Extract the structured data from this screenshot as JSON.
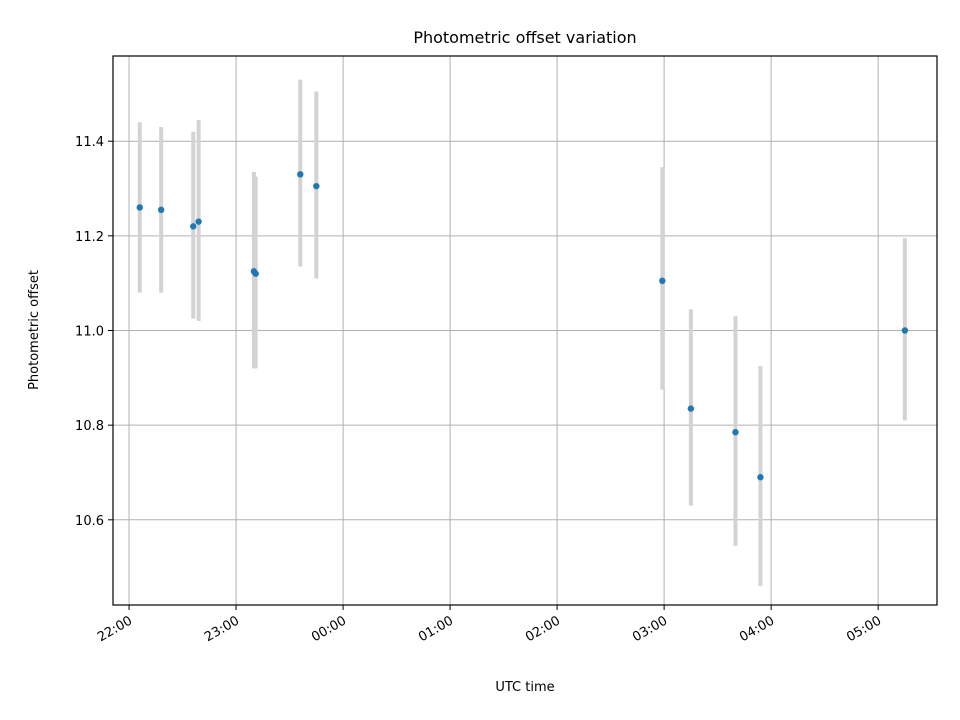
{
  "chart_data": {
    "type": "scatter",
    "title": "Photometric offset variation",
    "xlabel": "UTC time",
    "ylabel": "Photometric offset",
    "x_tick_labels": [
      "22:00",
      "23:00",
      "00:00",
      "01:00",
      "02:00",
      "03:00",
      "04:00",
      "05:00"
    ],
    "y_ticks": [
      10.6,
      10.8,
      11.0,
      11.2,
      11.4
    ],
    "y_tick_labels": [
      "10.6",
      "10.8",
      "11.0",
      "11.2",
      "11.4"
    ],
    "xlim": [
      "21:51",
      "05:33"
    ],
    "ylim": [
      10.42,
      11.58
    ],
    "grid": true,
    "marker_color": "#1f77b4",
    "errorbar_color": "#d3d3d3",
    "points": [
      {
        "x": "22:06",
        "y": 11.26,
        "low": 11.08,
        "high": 11.44
      },
      {
        "x": "22:18",
        "y": 11.255,
        "low": 11.08,
        "high": 11.43
      },
      {
        "x": "22:36",
        "y": 11.22,
        "low": 11.025,
        "high": 11.42
      },
      {
        "x": "22:39",
        "y": 11.23,
        "low": 11.02,
        "high": 11.445
      },
      {
        "x": "23:10",
        "y": 11.125,
        "low": 10.92,
        "high": 11.335
      },
      {
        "x": "23:11",
        "y": 11.12,
        "low": 10.92,
        "high": 11.325
      },
      {
        "x": "23:36",
        "y": 11.33,
        "low": 11.135,
        "high": 11.53
      },
      {
        "x": "23:45",
        "y": 11.305,
        "low": 11.11,
        "high": 11.505
      },
      {
        "x": "02:59",
        "y": 11.105,
        "low": 10.875,
        "high": 11.345
      },
      {
        "x": "03:15",
        "y": 10.835,
        "low": 10.63,
        "high": 11.045
      },
      {
        "x": "03:40",
        "y": 10.785,
        "low": 10.545,
        "high": 11.03
      },
      {
        "x": "03:54",
        "y": 10.69,
        "low": 10.46,
        "high": 10.925
      },
      {
        "x": "05:15",
        "y": 11.0,
        "low": 10.81,
        "high": 11.195
      }
    ]
  }
}
